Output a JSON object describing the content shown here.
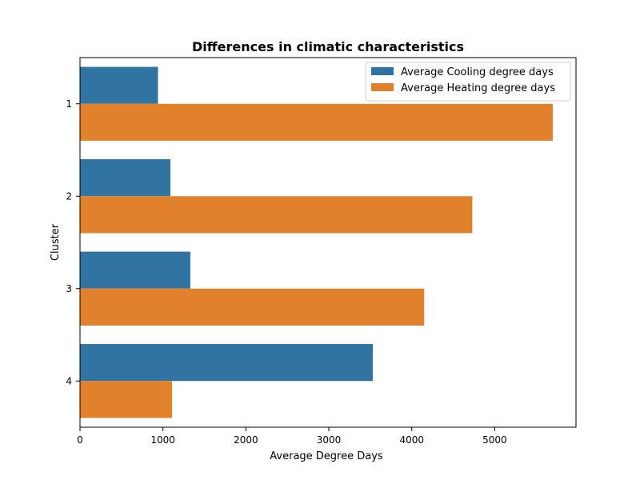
{
  "chart_data": {
    "type": "bar",
    "orientation": "horizontal",
    "title": "Differences in climatic characteristics",
    "xlabel": "Average Degree Days",
    "ylabel": "Cluster",
    "categories": [
      "1",
      "2",
      "3",
      "4"
    ],
    "xlim": [
      0,
      5980
    ],
    "xticks": [
      0,
      1000,
      2000,
      3000,
      4000,
      5000
    ],
    "grid": false,
    "legend_position": "top-right",
    "series": [
      {
        "name": "Average Cooling degree days",
        "color": "#3274a1",
        "values": [
          940,
          1090,
          1330,
          3530
        ]
      },
      {
        "name": "Average Heating degree days",
        "color": "#e1812c",
        "values": [
          5700,
          4730,
          4150,
          1110
        ]
      }
    ]
  }
}
